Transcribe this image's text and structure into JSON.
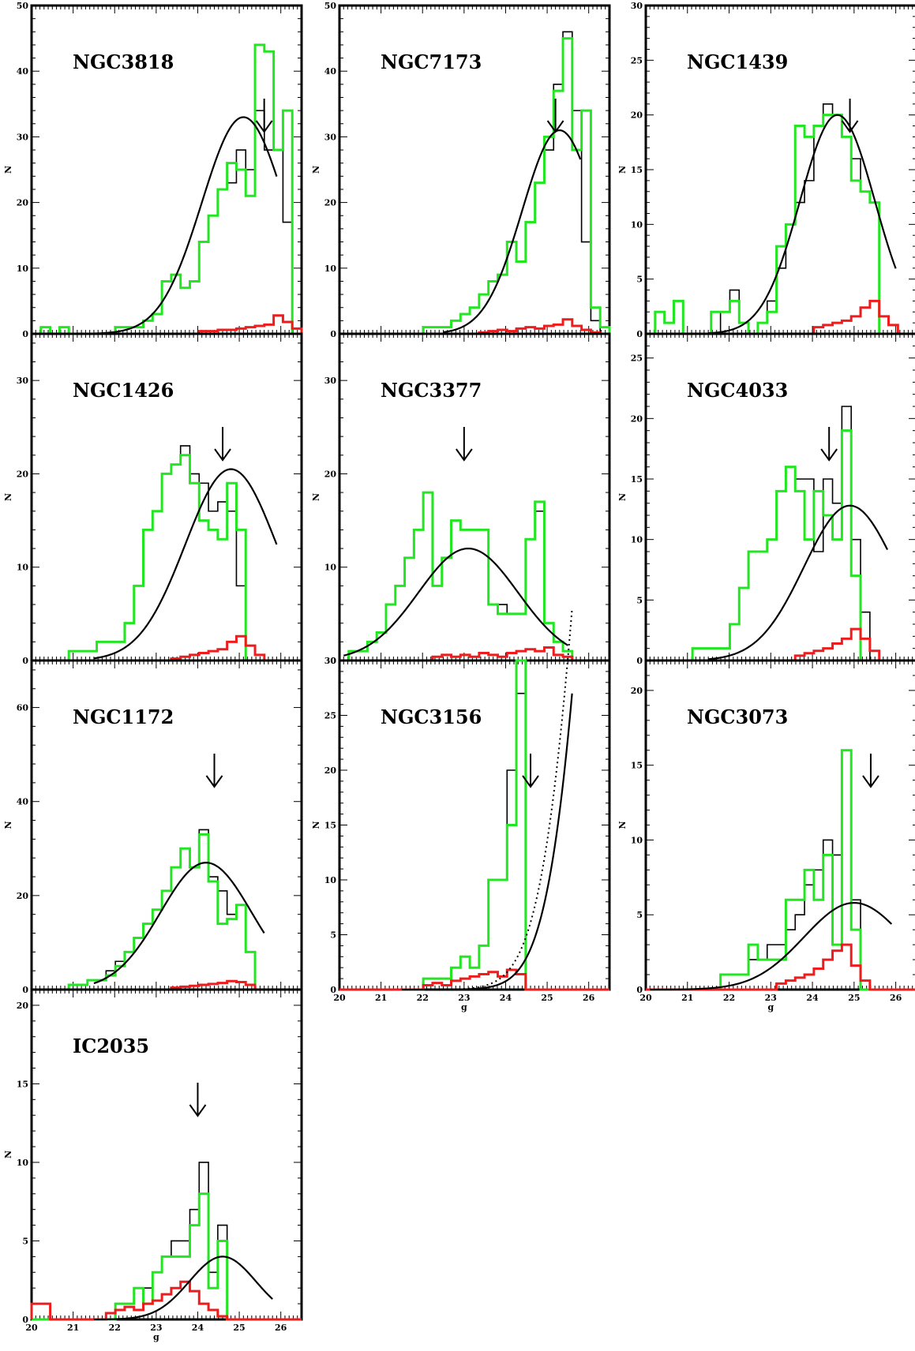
{
  "colors": {
    "total": "#000000",
    "cleaned": "#22e622",
    "background": "#ee1c1c",
    "fit": "#000000"
  },
  "chart_data": [
    {
      "type": "histogram",
      "label": "NGC3818",
      "ylabel": "N",
      "xlabel": "",
      "xlim": [
        20,
        26.5
      ],
      "ylim": [
        0,
        50
      ],
      "yticks": [
        0,
        10,
        20,
        30,
        40,
        50
      ],
      "arrow_g": 25.6,
      "total": [
        0,
        1,
        0,
        0,
        0,
        0,
        0,
        0,
        0,
        1,
        1,
        1,
        2,
        3,
        8,
        9,
        7,
        8,
        14,
        18,
        22,
        23,
        28,
        25,
        34,
        28,
        28,
        17,
        0
      ],
      "cleaned": [
        0,
        1,
        0,
        1,
        0,
        0,
        0,
        0,
        0,
        1,
        1,
        1,
        2,
        3,
        8,
        9,
        7,
        8,
        14,
        18,
        22,
        26,
        25,
        21,
        44,
        43,
        28,
        34,
        0
      ],
      "background": [
        0,
        0,
        0,
        0,
        0,
        0,
        0,
        0,
        0,
        0,
        0,
        0,
        0,
        0,
        0,
        0,
        0,
        0,
        0.4,
        0.4,
        0.6,
        0.6,
        0.8,
        1.0,
        1.2,
        1.4,
        2.8,
        1.8,
        0.8
      ],
      "fit": {
        "mu": 25.1,
        "sigma": 1.0,
        "amp": 33.0,
        "range": [
          21.5,
          25.9
        ]
      }
    },
    {
      "type": "histogram",
      "label": "NGC7173",
      "ylabel": "N",
      "xlabel": "",
      "xlim": [
        20,
        26.5
      ],
      "ylim": [
        0,
        50
      ],
      "yticks": [
        0,
        10,
        20,
        30,
        40,
        50
      ],
      "arrow_g": 25.2,
      "total": [
        0,
        0,
        0,
        0,
        0,
        0,
        0,
        0,
        0,
        1,
        1,
        1,
        2,
        3,
        4,
        6,
        8,
        9,
        14,
        11,
        17,
        23,
        28,
        38,
        46,
        34,
        14,
        2,
        0
      ],
      "cleaned": [
        0,
        0,
        0,
        0,
        0,
        0,
        0,
        0,
        0,
        1,
        1,
        1,
        2,
        3,
        4,
        6,
        8,
        9,
        14,
        11,
        17,
        23,
        30,
        37,
        45,
        28,
        34,
        4,
        1
      ],
      "background": [
        0,
        0,
        0,
        0,
        0,
        0,
        0,
        0,
        0,
        0,
        0,
        0,
        0,
        0,
        0,
        0.2,
        0.4,
        0.6,
        0.4,
        0.8,
        1.0,
        0.8,
        1.2,
        1.4,
        2.2,
        1.2,
        0.6,
        0.2,
        0
      ],
      "fit": {
        "mu": 25.3,
        "sigma": 0.9,
        "amp": 31.0,
        "range": [
          22.5,
          25.8
        ]
      }
    },
    {
      "type": "histogram",
      "label": "NGC1439",
      "ylabel": "N",
      "xlabel": "",
      "xlim": [
        20,
        26.5
      ],
      "ylim": [
        0,
        30
      ],
      "yticks": [
        0,
        5,
        10,
        15,
        20,
        25,
        30
      ],
      "arrow_g": 24.9,
      "total": [
        0,
        0,
        0,
        0,
        0,
        0,
        0,
        0,
        2,
        4,
        1,
        0,
        1,
        3,
        6,
        10,
        12,
        14,
        19,
        21,
        20,
        18,
        16,
        13,
        12,
        0,
        0,
        0,
        0
      ],
      "cleaned": [
        0,
        2,
        1,
        3,
        0,
        0,
        0,
        2,
        2,
        3,
        1,
        0,
        1,
        2,
        8,
        10,
        19,
        18,
        19,
        20,
        20,
        18,
        14,
        13,
        12,
        0,
        0,
        0,
        0
      ],
      "background": [
        0,
        0,
        0,
        0,
        0,
        0,
        0,
        0,
        0,
        0,
        0,
        0,
        0,
        0,
        0,
        0,
        0,
        0,
        0.6,
        0.8,
        1.0,
        1.2,
        1.6,
        2.4,
        3.0,
        1.6,
        0.8,
        0,
        0
      ],
      "fit": {
        "mu": 24.6,
        "sigma": 0.9,
        "amp": 20.0,
        "range": [
          21.5,
          26.0
        ]
      }
    },
    {
      "type": "histogram",
      "label": "NGC1426",
      "ylabel": "N",
      "xlabel": "",
      "xlim": [
        20,
        26.5
      ],
      "ylim": [
        0,
        35
      ],
      "yticks": [
        0,
        10,
        20,
        30
      ],
      "arrow_g": 24.6,
      "total": [
        0,
        0,
        0,
        0,
        1,
        1,
        1,
        2,
        2,
        2,
        4,
        8,
        14,
        16,
        20,
        21,
        23,
        20,
        19,
        16,
        17,
        16,
        8,
        0,
        0,
        0,
        0,
        0,
        0
      ],
      "cleaned": [
        0,
        0,
        0,
        0,
        1,
        1,
        1,
        2,
        2,
        2,
        4,
        8,
        14,
        16,
        20,
        21,
        22,
        19,
        15,
        14,
        13,
        19,
        14,
        0,
        0,
        0,
        0,
        0,
        0
      ],
      "background": [
        0,
        0,
        0,
        0,
        0,
        0,
        0,
        0,
        0,
        0,
        0,
        0,
        0,
        0,
        0,
        0.2,
        0.4,
        0.6,
        0.8,
        1.0,
        1.2,
        2.0,
        2.6,
        1.6,
        0.6,
        0,
        0,
        0,
        0
      ],
      "fit": {
        "mu": 24.8,
        "sigma": 1.1,
        "amp": 20.5,
        "range": [
          21.5,
          25.9
        ]
      }
    },
    {
      "type": "histogram",
      "label": "NGC3377",
      "ylabel": "N",
      "xlabel": "",
      "xlim": [
        20,
        26.5
      ],
      "ylim": [
        0,
        35
      ],
      "yticks": [
        0,
        10,
        20,
        30
      ],
      "arrow_g": 23.0,
      "total": [
        0,
        1,
        1,
        2,
        3,
        6,
        8,
        11,
        14,
        18,
        8,
        11,
        15,
        14,
        14,
        14,
        6,
        6,
        5,
        5,
        13,
        16,
        4,
        2,
        1,
        0,
        0,
        0,
        0
      ],
      "cleaned": [
        0,
        1,
        1,
        2,
        3,
        6,
        8,
        11,
        14,
        18,
        8,
        11,
        15,
        14,
        14,
        14,
        6,
        5,
        5,
        5,
        13,
        17,
        4,
        2,
        1,
        0,
        0,
        0,
        0
      ],
      "background": [
        0,
        0,
        0,
        0,
        0,
        0,
        0,
        0,
        0,
        0,
        0.4,
        0.6,
        0.4,
        0.6,
        0.4,
        0.8,
        0.6,
        0.4,
        0.8,
        1.0,
        1.2,
        1.0,
        1.4,
        0.6,
        0.4,
        0,
        0,
        0,
        0
      ],
      "fit": {
        "mu": 23.1,
        "sigma": 1.2,
        "amp": 12.0,
        "range": [
          20.1,
          25.5
        ]
      }
    },
    {
      "type": "histogram",
      "label": "NGC4033",
      "ylabel": "N",
      "xlabel": "",
      "xlim": [
        20,
        26.5
      ],
      "ylim": [
        0,
        27
      ],
      "yticks": [
        0,
        5,
        10,
        15,
        20,
        25
      ],
      "arrow_g": 24.4,
      "total": [
        0,
        0,
        0,
        0,
        0,
        1,
        1,
        1,
        1,
        3,
        6,
        9,
        9,
        10,
        14,
        16,
        15,
        15,
        9,
        15,
        13,
        21,
        10,
        4,
        0,
        0,
        0,
        0,
        0
      ],
      "cleaned": [
        0,
        0,
        0,
        0,
        0,
        1,
        1,
        1,
        1,
        3,
        6,
        9,
        9,
        10,
        14,
        16,
        14,
        10,
        14,
        12,
        10,
        19,
        7,
        0,
        0,
        0,
        0,
        0,
        0
      ],
      "background": [
        0,
        0,
        0,
        0,
        0,
        0,
        0,
        0,
        0,
        0,
        0,
        0,
        0,
        0,
        0,
        0,
        0.4,
        0.6,
        0.8,
        1.0,
        1.4,
        1.8,
        2.6,
        1.8,
        0.8,
        0,
        0,
        0,
        0
      ],
      "fit": {
        "mu": 24.9,
        "sigma": 1.1,
        "amp": 12.8,
        "range": [
          21.5,
          25.8
        ]
      }
    },
    {
      "type": "histogram",
      "label": "NGC1172",
      "ylabel": "N",
      "xlabel": "",
      "xlim": [
        20,
        26.5
      ],
      "ylim": [
        0,
        70
      ],
      "yticks": [
        0,
        20,
        40,
        60
      ],
      "arrow_g": 24.4,
      "total": [
        0,
        0,
        0,
        0,
        1,
        1,
        2,
        2,
        4,
        6,
        8,
        11,
        14,
        17,
        21,
        26,
        30,
        26,
        34,
        24,
        21,
        16,
        18,
        8,
        0,
        0,
        0,
        0,
        0
      ],
      "cleaned": [
        0,
        0,
        0,
        0,
        1,
        1,
        2,
        2,
        3,
        5,
        8,
        11,
        14,
        17,
        21,
        26,
        30,
        26,
        33,
        23,
        14,
        15,
        18,
        8,
        0,
        0,
        0,
        0,
        0
      ],
      "background": [
        0,
        0,
        0,
        0,
        0,
        0,
        0,
        0,
        0,
        0,
        0,
        0,
        0,
        0,
        0,
        0.4,
        0.6,
        0.8,
        1.0,
        1.2,
        1.4,
        1.8,
        1.6,
        1.0,
        0,
        0,
        0,
        0,
        0
      ],
      "fit": {
        "mu": 24.2,
        "sigma": 1.1,
        "amp": 27.0,
        "range": [
          21.5,
          25.6
        ]
      }
    },
    {
      "type": "histogram",
      "label": "NGC3156",
      "ylabel": "N",
      "xlabel": "g",
      "xlim": [
        20,
        26.5
      ],
      "ylim": [
        0,
        30
      ],
      "yticks": [
        0,
        5,
        10,
        15,
        20,
        25,
        30
      ],
      "arrow_g": 24.6,
      "total": [
        0,
        0,
        0,
        0,
        0,
        0,
        0,
        0,
        0,
        1,
        1,
        1,
        2,
        3,
        2,
        4,
        10,
        10,
        20,
        27,
        0,
        0,
        0,
        0,
        0,
        0,
        0,
        0,
        0
      ],
      "cleaned": [
        0,
        0,
        0,
        0,
        0,
        0,
        0,
        0,
        0,
        1,
        1,
        1,
        2,
        3,
        2,
        4,
        10,
        10,
        15,
        30,
        0,
        0,
        0,
        0,
        0,
        0,
        0,
        0,
        0
      ],
      "background": [
        0,
        0,
        0,
        0,
        0,
        0,
        0,
        0,
        0,
        0.4,
        0.6,
        0.4,
        0.8,
        1.0,
        1.2,
        1.4,
        1.6,
        1.2,
        1.8,
        1.4,
        0,
        0,
        0,
        0,
        0,
        0,
        0,
        0,
        0
      ],
      "fit": {
        "mu": 27.5,
        "sigma": 1.1,
        "amp": 120.0,
        "range": [
          21.5,
          25.6
        ]
      }
    },
    {
      "type": "histogram",
      "label": "NGC3073",
      "ylabel": "N",
      "xlabel": "g",
      "xlim": [
        20,
        26.5
      ],
      "ylim": [
        0,
        22
      ],
      "yticks": [
        0,
        5,
        10,
        15,
        20
      ],
      "arrow_g": 25.4,
      "total": [
        0,
        0,
        0,
        0,
        0,
        0,
        0,
        0,
        1,
        1,
        1,
        2,
        2,
        3,
        3,
        4,
        5,
        7,
        8,
        10,
        9,
        16,
        6,
        0,
        0,
        0,
        0,
        0,
        0
      ],
      "cleaned": [
        0,
        0,
        0,
        0,
        0,
        0,
        0,
        0,
        1,
        1,
        1,
        3,
        2,
        2,
        2,
        6,
        6,
        8,
        6,
        9,
        3,
        16,
        4,
        0,
        0,
        0,
        0,
        0,
        0
      ],
      "background": [
        0,
        0,
        0,
        0,
        0,
        0,
        0,
        0,
        0,
        0,
        0,
        0,
        0,
        0,
        0.4,
        0.6,
        0.8,
        1.0,
        1.4,
        2.0,
        2.6,
        3.0,
        1.6,
        0.6,
        0,
        0,
        0,
        0,
        0
      ],
      "fit": {
        "mu": 25.0,
        "sigma": 1.2,
        "amp": 5.8,
        "range": [
          20.1,
          25.9
        ]
      }
    },
    {
      "type": "histogram",
      "label": "IC2035",
      "ylabel": "N",
      "xlabel": "g",
      "xlim": [
        20,
        26.5
      ],
      "ylim": [
        0,
        21
      ],
      "yticks": [
        0,
        5,
        10,
        15,
        20
      ],
      "arrow_g": 24.0,
      "total": [
        0,
        0,
        0,
        0,
        0,
        0,
        0,
        0,
        0,
        1,
        1,
        2,
        2,
        3,
        4,
        5,
        5,
        7,
        10,
        3,
        6,
        0,
        0,
        0,
        0,
        0,
        0,
        0,
        0
      ],
      "cleaned": [
        0,
        0,
        0,
        0,
        0,
        0,
        0,
        0,
        0,
        1,
        1,
        2,
        1,
        3,
        4,
        4,
        4,
        6,
        8,
        2,
        5,
        0,
        0,
        0,
        0,
        0,
        0,
        0,
        0
      ],
      "background": [
        1,
        1,
        0,
        0,
        0,
        0,
        0,
        0,
        0.4,
        0.6,
        0.8,
        0.6,
        1.0,
        1.2,
        1.6,
        2.0,
        2.4,
        1.8,
        1.0,
        0.6,
        0.2,
        0,
        0,
        0,
        0,
        0,
        0,
        0,
        0
      ],
      "fit": {
        "mu": 24.6,
        "sigma": 0.8,
        "amp": 4.0,
        "range": [
          21.5,
          25.8
        ]
      }
    }
  ]
}
